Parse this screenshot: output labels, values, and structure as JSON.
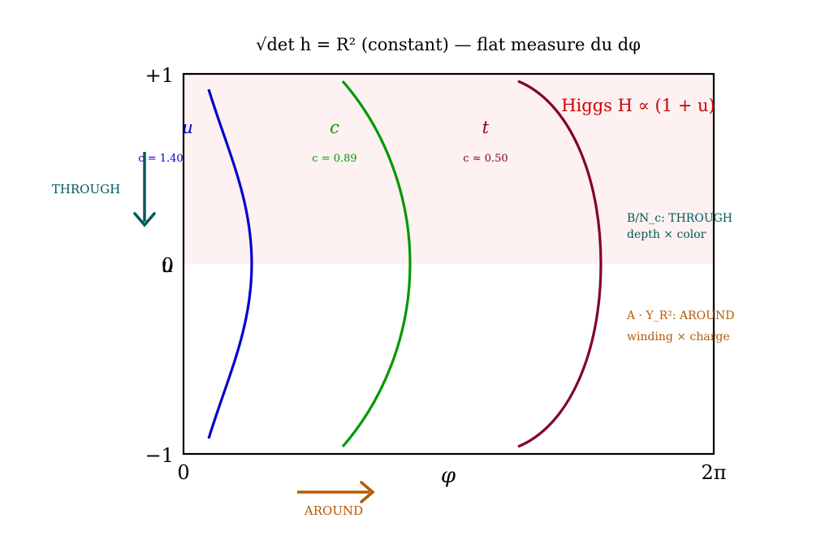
{
  "title": "√det h = R² (constant) — flat measure du dφ",
  "axes": {
    "y_top": "+1",
    "y_mid": "0",
    "y_mid_overlay": "u",
    "y_bottom": "−1",
    "x_left": "0",
    "x_mid": "φ",
    "x_right": "2π"
  },
  "higgs_label": "Higgs H ∝ (1 + u)",
  "colors": {
    "u": "#0000cc",
    "c": "#009900",
    "t": "#800030",
    "through": "#005a5a",
    "around": "#b35900",
    "higgs": "#cc0000",
    "shade": "#fdf1f1"
  },
  "curves": [
    {
      "name": "u",
      "c_label": "c = 1.40",
      "c": 1.4,
      "color": "#0000cc"
    },
    {
      "name": "c",
      "c_label": "c = 0.89",
      "c": 0.89,
      "color": "#009900"
    },
    {
      "name": "t",
      "c_label": "c ≈ 0.50",
      "c": 0.5,
      "color": "#800030"
    }
  ],
  "through": {
    "arrow_label": "THROUGH",
    "note_line1": "B/N_c: THROUGH",
    "note_line2": "depth × color"
  },
  "around": {
    "arrow_label": "AROUND",
    "note_line1": "A · Y_R²: AROUND",
    "note_line2": "winding × charge"
  }
}
